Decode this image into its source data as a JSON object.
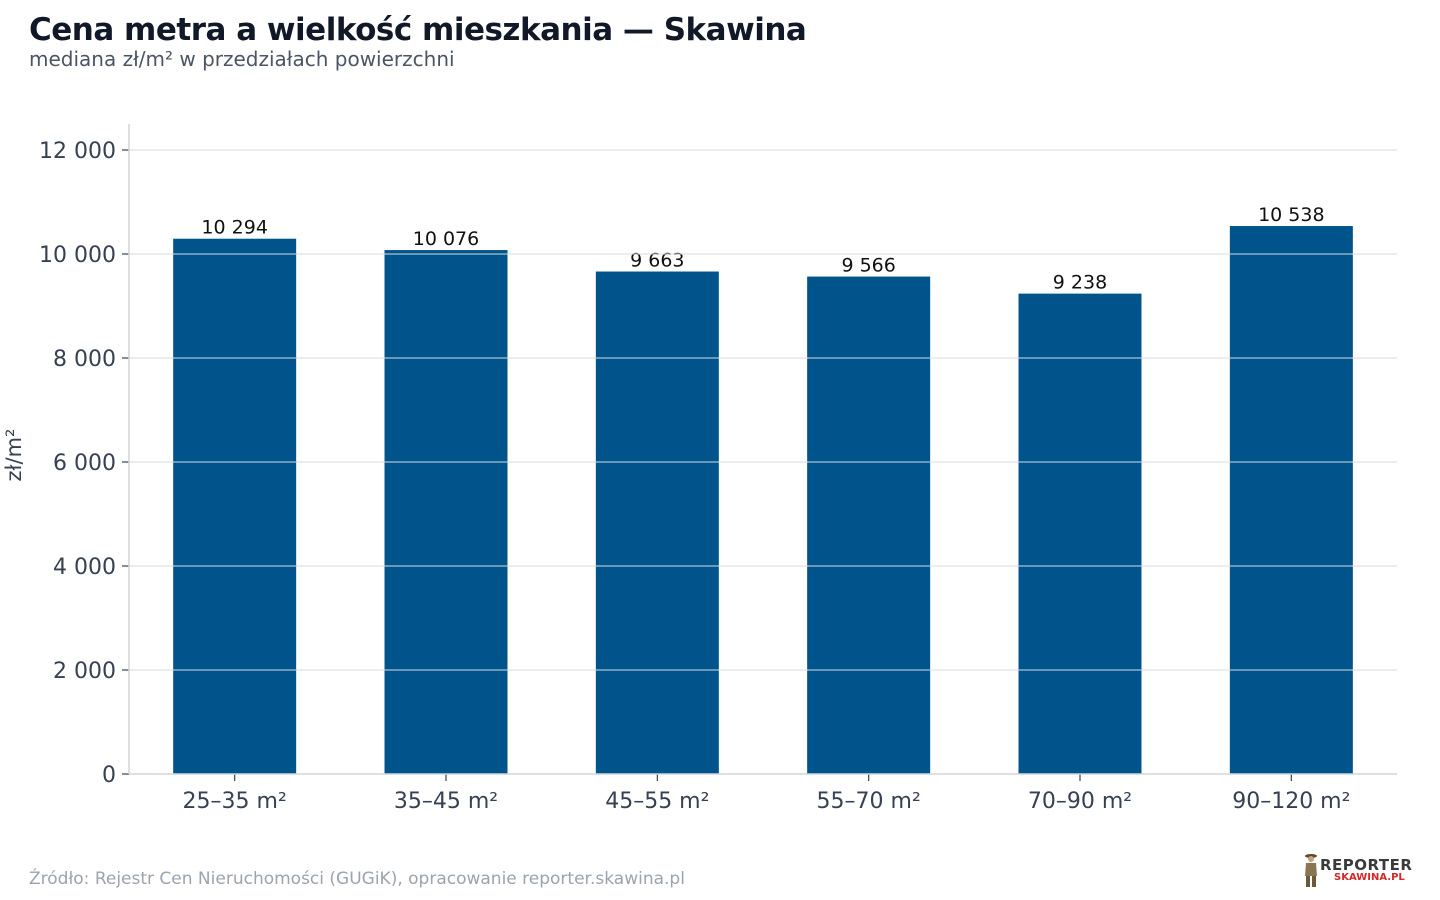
{
  "title": "Cena metra a wielkość mieszkania — Skawina",
  "subtitle": "mediana zł/m² w przedziałach powierzchni",
  "source": "Źródło: Rejestr Cen Nieruchomości (GUGiK), opracowanie reporter.skawina.pl",
  "logo": {
    "top": "REPORTER",
    "bottom": "SKAWINA.PL"
  },
  "colors": {
    "bar": "#00548c",
    "grid": "#e5e7eb",
    "axis": "#d1d5db",
    "tick_text": "#374151",
    "value_text": "#111111"
  },
  "chart_data": {
    "type": "bar",
    "title": "Cena metra a wielkość mieszkania — Skawina",
    "subtitle": "mediana zł/m² w przedziałach powierzchni",
    "xlabel": "",
    "ylabel": "zł/m²",
    "categories": [
      "25–35 m²",
      "35–45 m²",
      "45–55 m²",
      "55–70 m²",
      "70–90 m²",
      "90–120 m²"
    ],
    "values": [
      10294,
      10076,
      9663,
      9566,
      9238,
      10538
    ],
    "value_labels": [
      "10 294",
      "10 076",
      "9 663",
      "9 566",
      "9 238",
      "10 538"
    ],
    "yticks": [
      0,
      2000,
      4000,
      6000,
      8000,
      10000,
      12000
    ],
    "ytick_labels": [
      "0",
      "2 000",
      "4 000",
      "6 000",
      "8 000",
      "10 000",
      "12 000"
    ],
    "ylim": [
      0,
      12500
    ],
    "grid": true,
    "legend": "none"
  }
}
